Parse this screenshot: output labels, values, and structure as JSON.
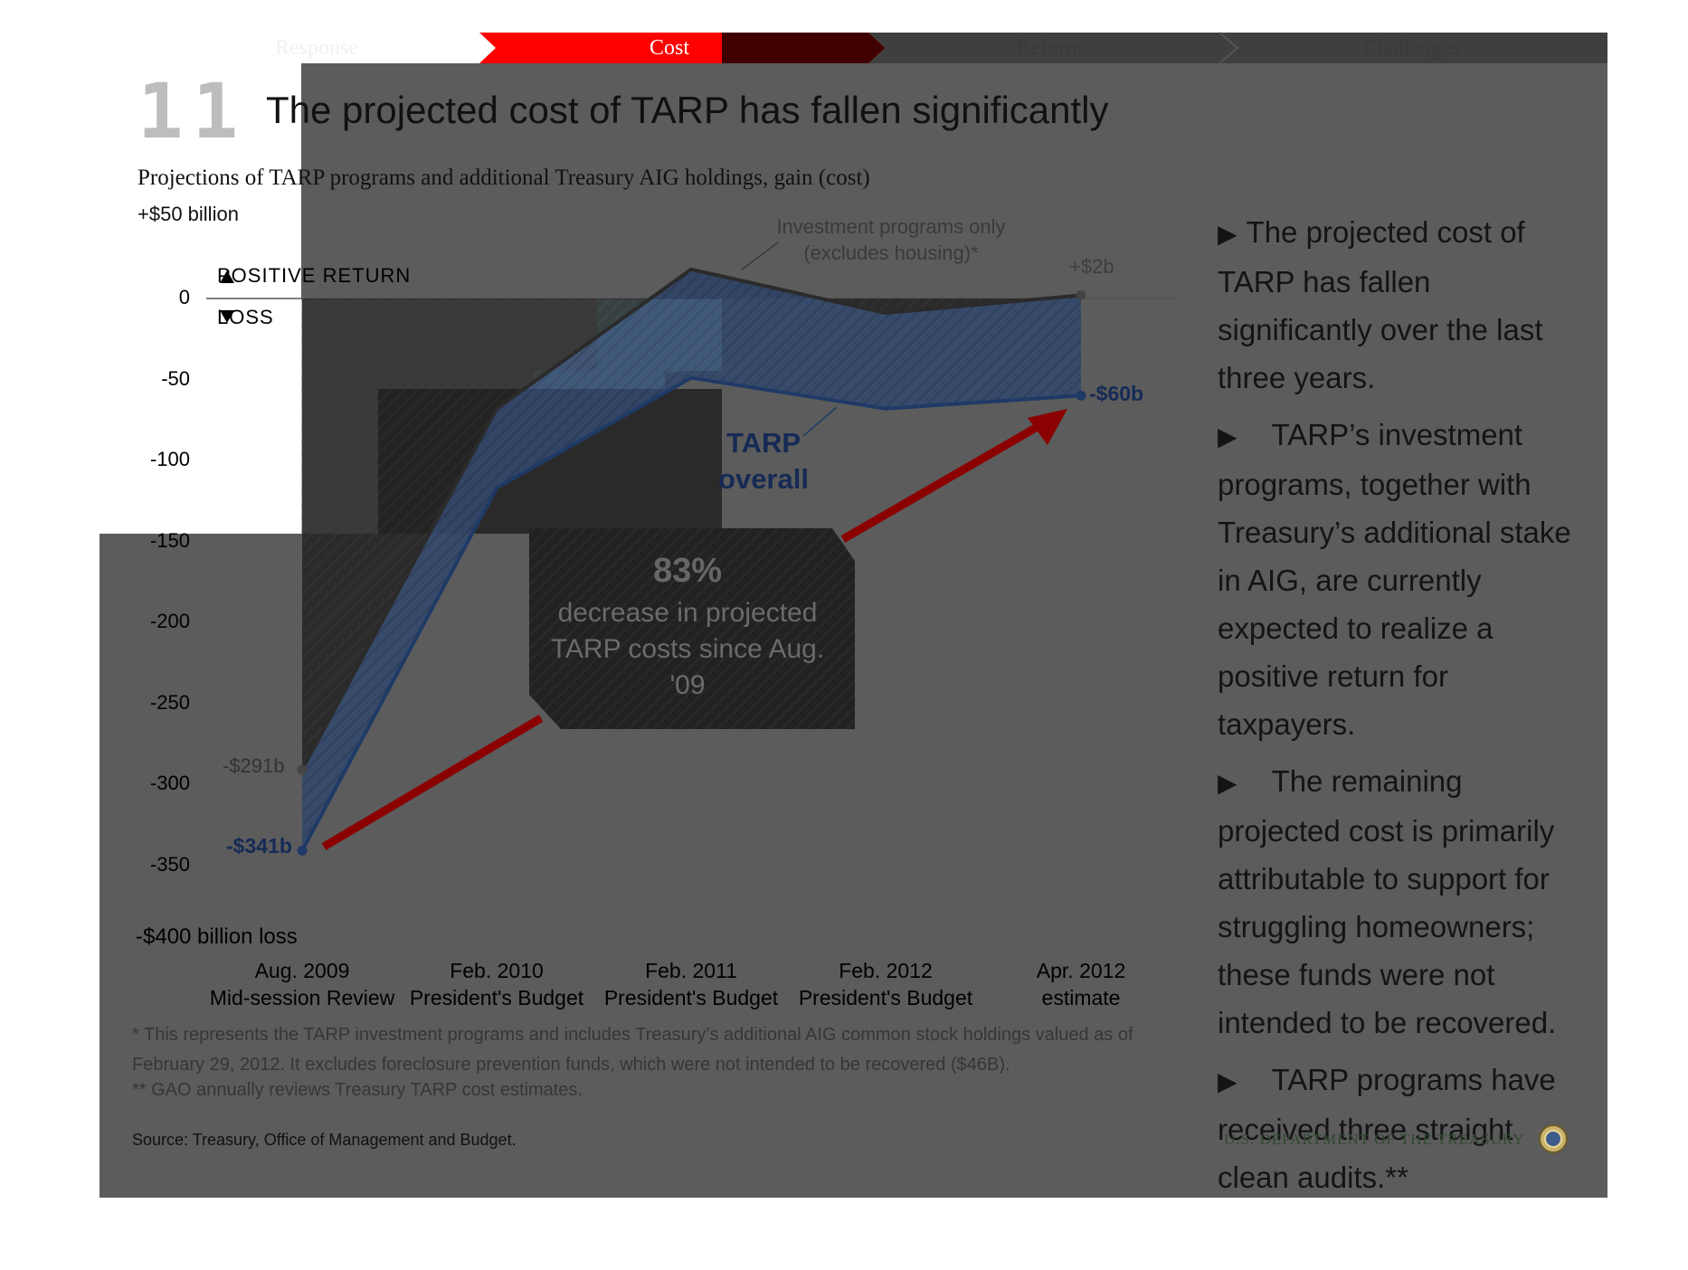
{
  "nav": {
    "tabs": [
      {
        "label": "Response",
        "active": false
      },
      {
        "label": "Cost",
        "active": true
      },
      {
        "label": "Reform",
        "active": false
      },
      {
        "label": "Challenges",
        "active": false
      }
    ],
    "active_color": "#ff0000"
  },
  "slide": {
    "number": "11",
    "title": "The projected cost of TARP has fallen significantly"
  },
  "chart_data": {
    "type": "line",
    "subtitle": "Projections of TARP programs and additional Treasury AIG holdings, gain (cost)",
    "ylabel_top": "+$50 billion",
    "ylabel_bottom": "-$400 billion loss",
    "ylim": [
      -400,
      50
    ],
    "y_ticks": [
      "0",
      "-50",
      "-100",
      "-150",
      "-200",
      "-250",
      "-300",
      "-350"
    ],
    "y_tick_values": [
      0,
      -50,
      -100,
      -150,
      -200,
      -250,
      -300,
      -350
    ],
    "categories": [
      [
        "Aug. 2009",
        "Mid-session Review"
      ],
      [
        "Feb. 2010",
        "President's Budget"
      ],
      [
        "Feb. 2011",
        "President's Budget"
      ],
      [
        "Feb. 2012",
        "President's Budget"
      ],
      [
        "Apr. 2012",
        "estimate"
      ]
    ],
    "series": [
      {
        "name": "Investment programs only (excludes housing)*",
        "values": [
          -291,
          -68,
          18,
          -9,
          2
        ],
        "color": "#555555"
      },
      {
        "name": "TARP overall",
        "values": [
          -341,
          -117,
          -49,
          -68,
          -60
        ],
        "color": "#1f3a66"
      }
    ],
    "legend": {
      "positive": "POSITIVE RETURN",
      "loss": "LOSS"
    },
    "annotations": {
      "investment_label": "Investment programs only (excludes housing)*",
      "tarp_label": "TARP overall",
      "start_investment": "-$291b",
      "start_tarp": "-$341b",
      "end_investment": "+$2b",
      "end_tarp": "-$60b"
    },
    "callout": {
      "percent": "83%",
      "text": "decrease in projected TARP costs since Aug. '09"
    },
    "grid": false
  },
  "bullets": [
    "The projected cost of TARP has fallen significantly over the last three years.",
    "TARP’s investment programs, together with Treasury’s additional stake in AIG,  are currently expected to realize a positive return for taxpayers.",
    "The remaining projected cost is primarily attributable to support for struggling homeowners; these funds were not intended to be recovered.",
    "TARP programs have received three straight clean audits.**"
  ],
  "footnotes": {
    "note1": "* This represents the TARP investment programs and includes Treasury’s additional AIG common stock holdings valued as of February 29, 2012. It excludes foreclosure prevention funds, which were not intended to be recovered ($46B).",
    "note2": "** GAO annually reviews Treasury TARP cost estimates.",
    "source": "Source: Treasury, Office of Management and Budget."
  },
  "branding": {
    "department": "U.S. DEPARTMENT OF THE TREASURY",
    "seal_icon": "treasury-seal-icon"
  },
  "colors": {
    "overlay": "#5c5c5c",
    "tarp_fill": "#33486b",
    "tarp_line": "#1f3a66",
    "investment_line": "#2b2b2b",
    "arrow": "#8b0000",
    "nav_red": "#ff0000"
  }
}
